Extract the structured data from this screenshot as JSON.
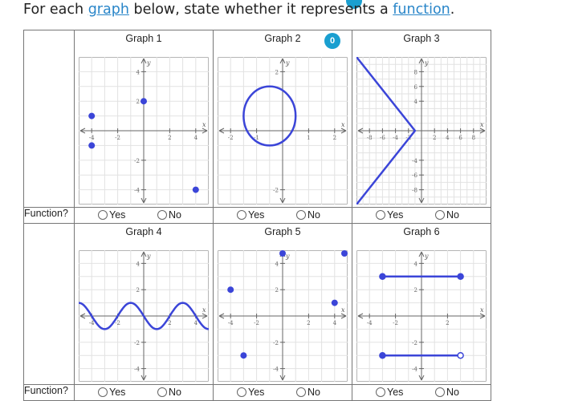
{
  "prompt": {
    "part1": "For each ",
    "link1": "graph",
    "part2": " below, state whether it represents a ",
    "link2": "function",
    "part3": "."
  },
  "badge": "0",
  "row_label": "Function?",
  "options": {
    "yes": "Yes",
    "no": "No"
  },
  "graphs": [
    {
      "title": "Graph 1",
      "type": "points",
      "xlim": [
        -5,
        5
      ],
      "ylim": [
        -5,
        5
      ],
      "xticks": [
        "-4",
        "-2",
        "2",
        "4"
      ],
      "yticks": [
        "4",
        "2",
        "-2",
        "-4"
      ],
      "xlabel": "x",
      "ylabel": "y",
      "points": [
        [
          -4,
          1
        ],
        [
          -4,
          -1
        ],
        [
          0,
          2
        ],
        [
          4,
          -4
        ]
      ]
    },
    {
      "title": "Graph 2",
      "type": "circle",
      "xlim": [
        -2.5,
        2.5
      ],
      "ylim": [
        -2.5,
        2.5
      ],
      "xticks": [
        "-2",
        "-1",
        "1",
        "2"
      ],
      "yticks": [
        "2",
        "-2"
      ],
      "xlabel": "x",
      "ylabel": "y",
      "circle": {
        "cx": -0.5,
        "cy": 0.5,
        "r": 1
      }
    },
    {
      "title": "Graph 3",
      "type": "polyline",
      "xlim": [
        -10,
        10
      ],
      "ylim": [
        -10,
        10
      ],
      "xticks": [
        "-8",
        "-6",
        "-4",
        "-2",
        "2",
        "4",
        "6",
        "8"
      ],
      "yticks": [
        "8",
        "6",
        "4",
        "-4",
        "-6",
        "-8"
      ],
      "xlabel": "x",
      "ylabel": "y",
      "polyline": [
        [
          -10,
          10
        ],
        [
          -1,
          0
        ],
        [
          -10,
          -10
        ]
      ]
    },
    {
      "title": "Graph 4",
      "type": "curve",
      "xlim": [
        -5,
        5
      ],
      "ylim": [
        -5,
        5
      ],
      "xticks": [
        "-4",
        "-2",
        "2",
        "4"
      ],
      "yticks": [
        "4",
        "2",
        "-2",
        "-4"
      ],
      "xlabel": "x",
      "ylabel": "y",
      "curve": {
        "amplitude": 1,
        "period": 4,
        "phase_x": -1
      }
    },
    {
      "title": "Graph 5",
      "type": "points",
      "xlim": [
        -5,
        5
      ],
      "ylim": [
        -5,
        5
      ],
      "xticks": [
        "-4",
        "-2",
        "2",
        "4"
      ],
      "yticks": [
        "4",
        "2",
        "-2",
        "-4"
      ],
      "xlabel": "x",
      "ylabel": "y",
      "points": [
        [
          0,
          5
        ],
        [
          5,
          5
        ],
        [
          -4,
          2
        ],
        [
          4,
          1
        ],
        [
          -3,
          -3
        ]
      ]
    },
    {
      "title": "Graph 6",
      "type": "segments",
      "xlim": [
        -5,
        5
      ],
      "ylim": [
        -5,
        5
      ],
      "xticks": [
        "-4",
        "-2",
        "2"
      ],
      "yticks": [
        "4",
        "2",
        "-2",
        "-4"
      ],
      "xlabel": "x",
      "ylabel": "y",
      "segments": [
        {
          "from": [
            -3,
            3
          ],
          "to": [
            3,
            3
          ],
          "from_closed": true,
          "to_closed": true
        },
        {
          "from": [
            -3,
            -3
          ],
          "to": [
            3,
            -3
          ],
          "from_closed": true,
          "to_closed": false
        }
      ]
    }
  ]
}
